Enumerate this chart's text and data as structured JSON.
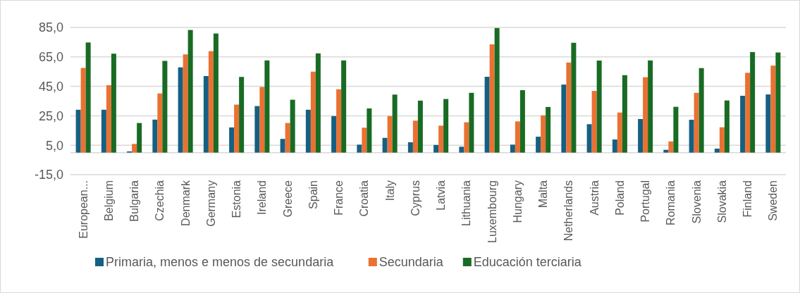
{
  "chart_data": {
    "type": "bar",
    "categories": [
      "European...",
      "Belgium",
      "Bulgaria",
      "Czechia",
      "Denmark",
      "Germany",
      "Estonia",
      "Ireland",
      "Greece",
      "Spain",
      "France",
      "Croatia",
      "Italy",
      "Cyprus",
      "Latvia",
      "Lithuania",
      "Luxembourg",
      "Hungary",
      "Malta",
      "Netherlands",
      "Austria",
      "Poland",
      "Portugal",
      "Romania",
      "Slovenia",
      "Slovakia",
      "Finland",
      "Sweden"
    ],
    "series": [
      {
        "name": "Primaria, menos e menos de secundaria",
        "color": "#156082",
        "values": [
          29.1,
          29.1,
          0.8,
          22.4,
          57.9,
          52.0,
          17.1,
          31.6,
          9.3,
          29.1,
          24.8,
          5.4,
          10.0,
          7.0,
          5.2,
          4.0,
          51.5,
          5.4,
          10.8,
          46.2,
          19.3,
          8.9,
          22.8,
          1.9,
          22.3,
          2.7,
          38.6,
          39.5
        ]
      },
      {
        "name": "Secundaria",
        "color": "#e97132",
        "values": [
          57.5,
          45.8,
          5.9,
          40.2,
          66.7,
          68.9,
          32.6,
          44.6,
          20.1,
          55.0,
          43.0,
          16.9,
          24.8,
          21.7,
          18.3,
          20.6,
          73.5,
          21.2,
          25.3,
          61.2,
          41.9,
          27.2,
          51.2,
          7.6,
          40.6,
          17.2,
          54.2,
          59.1
        ]
      },
      {
        "name": "Educación terciaria",
        "color": "#196b24",
        "values": [
          74.8,
          67.2,
          20.1,
          62.3,
          83.3,
          80.9,
          51.4,
          62.6,
          35.9,
          67.4,
          62.6,
          30.0,
          39.4,
          35.3,
          36.4,
          40.6,
          84.6,
          42.4,
          31.0,
          74.6,
          62.5,
          52.6,
          62.6,
          31.1,
          57.4,
          35.4,
          68.3,
          68.0
        ]
      }
    ],
    "ylim": [
      -15,
      85
    ],
    "yticks": [
      {
        "value": -15,
        "label": "-15,0"
      },
      {
        "value": 5,
        "label": "5,0"
      },
      {
        "value": 25,
        "label": "25,0"
      },
      {
        "value": 45,
        "label": "45,0"
      },
      {
        "value": 65,
        "label": "65,0"
      },
      {
        "value": 85,
        "label": "85,0"
      }
    ],
    "grid": "y",
    "legend": "bottom"
  }
}
